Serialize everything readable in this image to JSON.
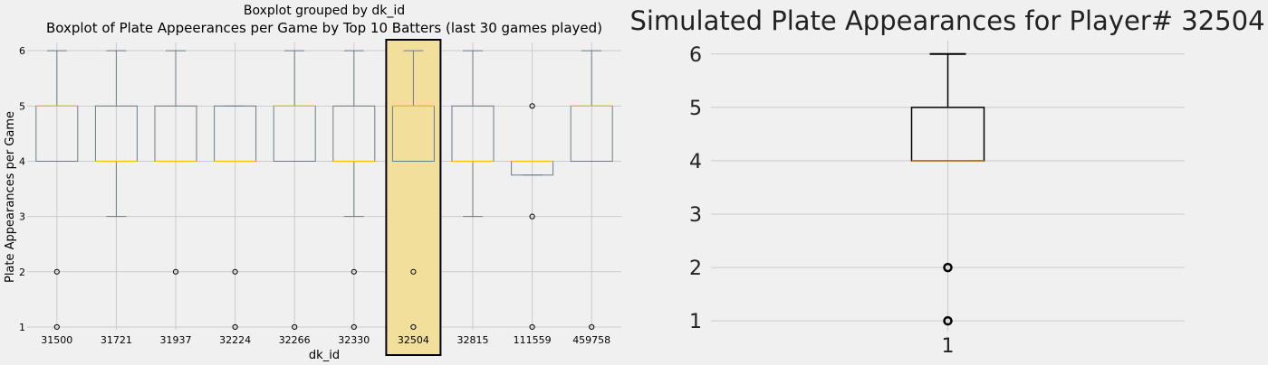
{
  "chart_data": [
    {
      "type": "boxplot",
      "suptitle": "Boxplot grouped by dk_id",
      "title": "Boxplot of Plate Appeerances per Game by Top 10 Batters (last 30 games played)",
      "xlabel": "dk_id",
      "ylabel": "Plate Appearances per Game",
      "ylim": [
        0.95,
        6.15
      ],
      "yticks": [
        1,
        2,
        3,
        4,
        5,
        6
      ],
      "grid": true,
      "highlight_category": "32504",
      "colors": {
        "box": "#6b7d87",
        "median": "#ffc000",
        "highlight_fill": "#f3df9c",
        "highlight_edge": "#000000"
      },
      "categories": [
        "31500",
        "31721",
        "31937",
        "32224",
        "32266",
        "32330",
        "32504",
        "32815",
        "111559",
        "459758"
      ],
      "boxes": [
        {
          "id": "31500",
          "whislo": 4,
          "q1": 4,
          "med": 5,
          "q3": 5,
          "whishi": 6,
          "fliers": [
            2,
            1
          ]
        },
        {
          "id": "31721",
          "whislo": 3,
          "q1": 4,
          "med": 4,
          "q3": 5,
          "whishi": 6,
          "fliers": []
        },
        {
          "id": "31937",
          "whislo": 4,
          "q1": 4,
          "med": 4,
          "q3": 5,
          "whishi": 6,
          "fliers": [
            2
          ]
        },
        {
          "id": "32224",
          "whislo": 4,
          "q1": 4,
          "med": 4,
          "q3": 5,
          "whishi": 5,
          "fliers": [
            2,
            1
          ]
        },
        {
          "id": "32266",
          "whislo": 4,
          "q1": 4,
          "med": 5,
          "q3": 5,
          "whishi": 6,
          "fliers": [
            1
          ]
        },
        {
          "id": "32330",
          "whislo": 3,
          "q1": 4,
          "med": 4,
          "q3": 5,
          "whishi": 6,
          "fliers": [
            2,
            1
          ]
        },
        {
          "id": "32504",
          "whislo": 4,
          "q1": 4,
          "med": 5,
          "q3": 5,
          "whishi": 6,
          "fliers": [
            2,
            1
          ]
        },
        {
          "id": "32815",
          "whislo": 3,
          "q1": 4,
          "med": 4,
          "q3": 5,
          "whishi": 6,
          "fliers": []
        },
        {
          "id": "111559",
          "whislo": 3.75,
          "q1": 3.75,
          "med": 4,
          "q3": 4,
          "whishi": 4,
          "fliers": [
            5,
            3,
            1
          ]
        },
        {
          "id": "459758",
          "whislo": 4,
          "q1": 4,
          "med": 5,
          "q3": 5,
          "whishi": 6,
          "fliers": [
            1
          ]
        }
      ]
    },
    {
      "type": "boxplot",
      "title": "Simulated Plate Appearances for Player# 32504",
      "xlabel": "",
      "ylabel": "",
      "ylim": [
        0.8,
        6.25
      ],
      "yticks": [
        1,
        2,
        3,
        4,
        5,
        6
      ],
      "grid": true,
      "categories": [
        "1"
      ],
      "colors": {
        "box": "#000000",
        "median": "#d08000"
      },
      "boxes": [
        {
          "id": "1",
          "whislo": 4,
          "q1": 4,
          "med": 4,
          "q3": 5,
          "whishi": 6,
          "fliers": [
            2,
            1
          ]
        }
      ]
    }
  ]
}
